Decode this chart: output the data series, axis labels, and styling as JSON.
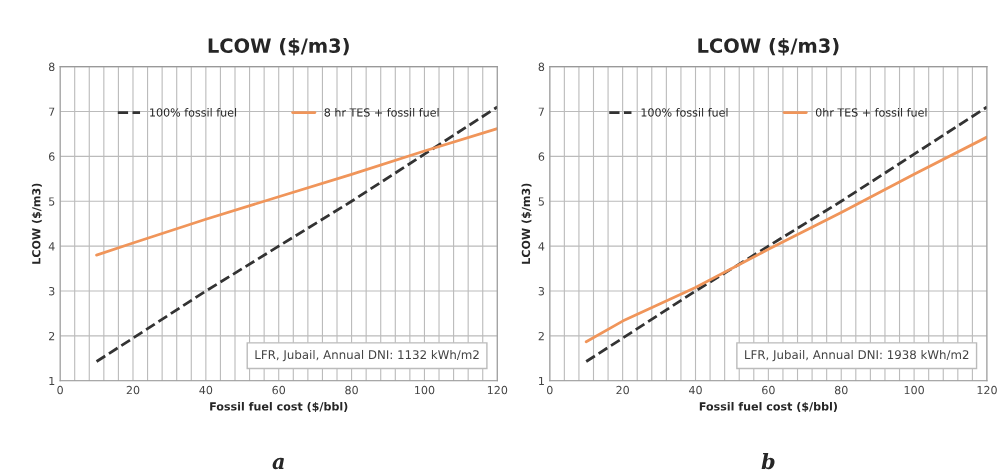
{
  "chart_data": [
    {
      "type": "line",
      "title": "LCOW ($/m3)",
      "xlabel": "Fossil fuel cost ($/bbl)",
      "ylabel": "LCOW ($/m3)",
      "x": [
        10,
        20,
        40,
        60,
        80,
        100,
        120
      ],
      "series": [
        {
          "name": "100% fossil fuel",
          "color": "#333333",
          "line_style": "dashed",
          "values": [
            1.43,
            1.95,
            3.0,
            4.0,
            5.0,
            6.05,
            7.1
          ]
        },
        {
          "name": "8 hr TES + fossil fuel",
          "color": "#f0955a",
          "line_style": "solid",
          "values": [
            3.8,
            4.07,
            4.6,
            5.1,
            5.6,
            6.12,
            6.62
          ]
        }
      ],
      "xlim": [
        0,
        120
      ],
      "ylim": [
        1,
        8
      ],
      "xticks": [
        0,
        {
          "value": 4,
          "label": null
        },
        {
          "value": 8,
          "label": null
        },
        {
          "value": 12,
          "label": null
        },
        {
          "value": 16,
          "label": null
        },
        20,
        {
          "value": 24,
          "label": null
        },
        {
          "value": 28,
          "label": null
        },
        {
          "value": 32,
          "label": null
        },
        {
          "value": 36,
          "label": null
        },
        40,
        {
          "value": 44,
          "label": null
        },
        {
          "value": 48,
          "label": null
        },
        {
          "value": 52,
          "label": null
        },
        {
          "value": 56,
          "label": null
        },
        60,
        {
          "value": 64,
          "label": null
        },
        {
          "value": 68,
          "label": null
        },
        {
          "value": 72,
          "label": null
        },
        {
          "value": 76,
          "label": null
        },
        80,
        {
          "value": 84,
          "label": null
        },
        {
          "value": 88,
          "label": null
        },
        {
          "value": 92,
          "label": null
        },
        {
          "value": 96,
          "label": null
        },
        100,
        {
          "value": 104,
          "label": null
        },
        {
          "value": 108,
          "label": null
        },
        {
          "value": 112,
          "label": null
        },
        {
          "value": 116,
          "label": null
        },
        120
      ],
      "yticks": [
        1,
        2,
        3,
        4,
        5,
        6,
        7,
        8
      ],
      "grid": true,
      "legend": "top",
      "marker": "none",
      "annotations": [
        "LFR, Jubail, Annual DNI: 1132 kWh/m2",
        "a"
      ]
    },
    {
      "type": "line",
      "title": "LCOW ($/m3)",
      "xlabel": "Fossil fuel cost ($/bbl)",
      "ylabel": "LCOW ($/m3)",
      "x": [
        10,
        20,
        40,
        60,
        80,
        100,
        120
      ],
      "series": [
        {
          "name": "100% fossil fuel",
          "color": "#333333",
          "line_style": "dashed",
          "values": [
            1.43,
            1.95,
            3.0,
            4.0,
            5.0,
            6.05,
            7.1
          ]
        },
        {
          "name": "0hr TES + fossil fuel",
          "color": "#f0955a",
          "line_style": "solid",
          "values": [
            1.87,
            2.33,
            3.08,
            3.93,
            4.75,
            5.6,
            6.43
          ]
        }
      ],
      "xlim": [
        0,
        120
      ],
      "ylim": [
        1,
        8
      ],
      "xticks": [
        0,
        {
          "value": 4,
          "label": null
        },
        {
          "value": 8,
          "label": null
        },
        {
          "value": 12,
          "label": null
        },
        {
          "value": 16,
          "label": null
        },
        20,
        {
          "value": 24,
          "label": null
        },
        {
          "value": 28,
          "label": null
        },
        {
          "value": 32,
          "label": null
        },
        {
          "value": 36,
          "label": null
        },
        40,
        {
          "value": 44,
          "label": null
        },
        {
          "value": 48,
          "label": null
        },
        {
          "value": 52,
          "label": null
        },
        {
          "value": 56,
          "label": null
        },
        60,
        {
          "value": 64,
          "label": null
        },
        {
          "value": 68,
          "label": null
        },
        {
          "value": 72,
          "label": null
        },
        {
          "value": 76,
          "label": null
        },
        80,
        {
          "value": 84,
          "label": null
        },
        {
          "value": 88,
          "label": null
        },
        {
          "value": 92,
          "label": null
        },
        {
          "value": 96,
          "label": null
        },
        100,
        {
          "value": 104,
          "label": null
        },
        {
          "value": 108,
          "label": null
        },
        {
          "value": 112,
          "label": null
        },
        {
          "value": 116,
          "label": null
        },
        120
      ],
      "yticks": [
        1,
        2,
        3,
        4,
        5,
        6,
        7,
        8
      ],
      "grid": true,
      "legend": "top",
      "marker": "none",
      "annotations": [
        "LFR, Jubail, Annual DNI: 1938 kWh/m2",
        "b"
      ]
    }
  ]
}
